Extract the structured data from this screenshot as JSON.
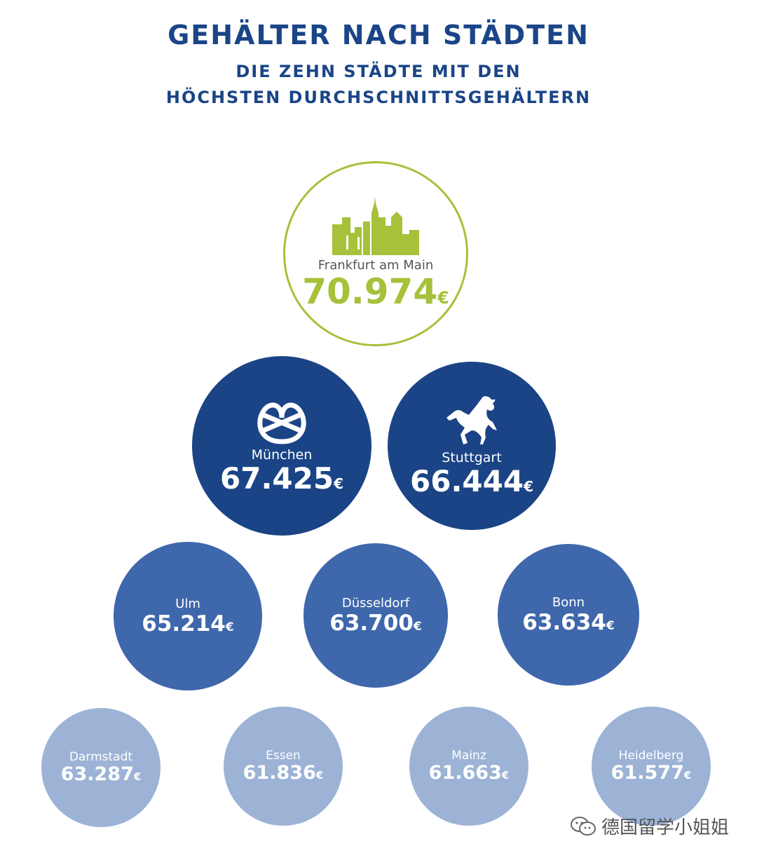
{
  "header": {
    "title": "GEHÄLTER NACH STÄDTEN",
    "subtitle_line1": "DIE ZEHN STÄDTE MIT DEN",
    "subtitle_line2": "HÖCHSTEN DURCHSCHNITTSGEHÄLTERN"
  },
  "currency": "€",
  "cities": [
    {
      "name": "Frankfurt am Main",
      "value": "70.974",
      "icon": "skyline-icon"
    },
    {
      "name": "München",
      "value": "67.425",
      "icon": "pretzel-icon"
    },
    {
      "name": "Stuttgart",
      "value": "66.444",
      "icon": "horse-icon"
    },
    {
      "name": "Ulm",
      "value": "65.214"
    },
    {
      "name": "Düsseldorf",
      "value": "63.700"
    },
    {
      "name": "Bonn",
      "value": "63.634"
    },
    {
      "name": "Darmstadt",
      "value": "63.287"
    },
    {
      "name": "Essen",
      "value": "61.836"
    },
    {
      "name": "Mainz",
      "value": "61.663"
    },
    {
      "name": "Heidelberg",
      "value": "61.577"
    }
  ],
  "colors": {
    "title": "#1a4587",
    "top_ring": "#a6c13a",
    "tier2": "#1b4486",
    "tier3": "#3f67ab",
    "tier4": "#9cb3d6"
  },
  "watermark": "德国留学小姐姐"
}
